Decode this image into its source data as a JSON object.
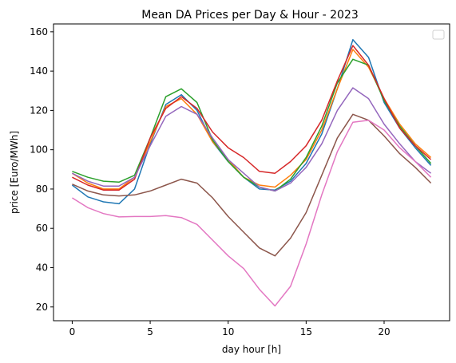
{
  "chart_data": {
    "type": "line",
    "title": "Mean DA Prices per Day & Hour - 2023",
    "xlabel": "day hour [h]",
    "ylabel": "price [Euro/MWh]",
    "xlim": [
      -1.2,
      24.2
    ],
    "ylim": [
      13,
      164
    ],
    "xticks": [
      0,
      5,
      10,
      15,
      20
    ],
    "yticks": [
      20,
      40,
      60,
      80,
      100,
      120,
      140,
      160
    ],
    "grid": false,
    "legend": "top-right (empty)",
    "x": [
      0,
      1,
      2,
      3,
      4,
      5,
      6,
      7,
      8,
      9,
      10,
      11,
      12,
      13,
      14,
      15,
      16,
      17,
      18,
      19,
      20,
      21,
      22,
      23
    ],
    "series": [
      {
        "color": "#1f77b4",
        "values": [
          82,
          76,
          73.5,
          72.5,
          80,
          103,
          123,
          128,
          120,
          104,
          94,
          86,
          80,
          79.5,
          84,
          93,
          108,
          131,
          156,
          147,
          124,
          111,
          101,
          92
        ]
      },
      {
        "color": "#ff7f0e",
        "values": [
          88,
          83,
          80,
          80,
          86,
          104,
          122,
          126,
          118,
          104,
          95,
          86,
          82,
          81,
          87,
          95,
          110,
          131,
          151,
          142,
          126,
          113,
          103,
          96
        ]
      },
      {
        "color": "#2ca02c",
        "values": [
          89,
          86,
          84,
          83.5,
          87,
          106,
          127,
          131,
          124,
          105,
          94,
          86,
          81,
          79,
          85,
          96,
          112,
          134,
          146,
          143,
          125,
          112,
          102,
          93
        ]
      },
      {
        "color": "#d62728",
        "values": [
          86,
          82,
          79.5,
          79.5,
          85,
          106,
          121,
          127,
          121,
          109,
          101,
          96,
          89,
          88,
          94,
          102,
          115,
          135,
          153,
          143,
          126,
          111,
          102,
          95
        ]
      },
      {
        "color": "#9467bd",
        "values": [
          88,
          84,
          81.5,
          81.5,
          86,
          102,
          117,
          122,
          118,
          106,
          95,
          88,
          81,
          79,
          83,
          91,
          103,
          120,
          131.5,
          126,
          113,
          103,
          94,
          88
        ]
      },
      {
        "color": "#8c564b",
        "values": [
          82.5,
          79,
          77,
          76.5,
          77,
          79,
          82,
          85,
          83,
          75.5,
          66,
          58,
          50,
          46,
          55,
          68,
          87,
          106,
          118,
          115,
          107,
          98,
          91,
          83
        ]
      },
      {
        "color": "#e377c2",
        "values": [
          75.5,
          70.5,
          67.5,
          65.8,
          66,
          66,
          66.5,
          65.5,
          62,
          54,
          46,
          39.5,
          29,
          20.5,
          30.5,
          52,
          77,
          99,
          114,
          115,
          110,
          101,
          94,
          86
        ]
      }
    ]
  }
}
